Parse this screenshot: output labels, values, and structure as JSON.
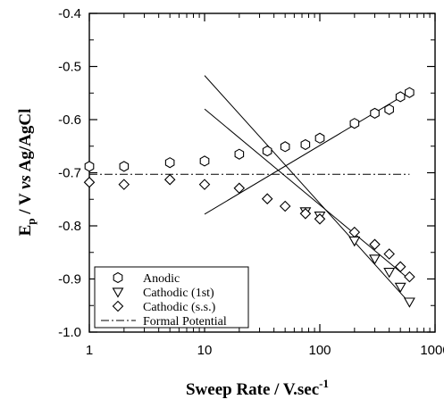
{
  "chart_data": {
    "type": "scatter",
    "xscale": "log",
    "xlim": [
      1,
      1000
    ],
    "ylim": [
      -1.0,
      -0.4
    ],
    "x_ticks": [
      1,
      10,
      100,
      1000
    ],
    "x_tick_labels": [
      "1",
      "10",
      "100",
      "1000"
    ],
    "y_ticks": [
      -1.0,
      -0.9,
      -0.8,
      -0.7,
      -0.6,
      -0.5,
      -0.4
    ],
    "y_tick_labels": [
      "-1.0",
      "-0.9",
      "-0.8",
      "-0.7",
      "-0.6",
      "-0.5",
      "-0.4"
    ],
    "xlabel": {
      "main": "Sweep Rate / V.sec",
      "sup": "-1"
    },
    "ylabel": {
      "e": "E",
      "sub": "p",
      "rest": " / V ",
      "vs": "vs",
      "end": " Ag/AgCl"
    },
    "grid": false,
    "legend_position": "bottom-left",
    "series": [
      {
        "name": "Anodic",
        "marker": "hexagon",
        "x": [
          1,
          2,
          5,
          10,
          20,
          35,
          50,
          75,
          100,
          200,
          300,
          400,
          500,
          600
        ],
        "y": [
          -0.688,
          -0.688,
          -0.681,
          -0.678,
          -0.665,
          -0.659,
          -0.651,
          -0.647,
          -0.635,
          -0.607,
          -0.588,
          -0.581,
          -0.557,
          -0.549
        ]
      },
      {
        "name": "Cathodic (1st)",
        "marker": "triangle-down",
        "x": [
          75,
          100,
          200,
          300,
          400,
          500,
          600
        ],
        "y": [
          -0.773,
          -0.781,
          -0.828,
          -0.862,
          -0.887,
          -0.915,
          -0.943
        ]
      },
      {
        "name": "Cathodic (s.s.)",
        "marker": "diamond",
        "x": [
          1,
          2,
          5,
          10,
          20,
          35,
          50,
          75,
          100,
          200,
          300,
          400,
          500,
          600
        ],
        "y": [
          -0.718,
          -0.722,
          -0.713,
          -0.722,
          -0.729,
          -0.749,
          -0.763,
          -0.777,
          -0.787,
          -0.812,
          -0.835,
          -0.853,
          -0.877,
          -0.896
        ]
      }
    ],
    "fit_lines": [
      {
        "of": "Anodic",
        "x": [
          10,
          600
        ],
        "y": [
          -0.778,
          -0.548
        ]
      },
      {
        "of": "Cathodic (1st)",
        "x": [
          10,
          600
        ],
        "y": [
          -0.517,
          -0.945
        ]
      },
      {
        "of": "Cathodic (s.s.)",
        "x": [
          10,
          600
        ],
        "y": [
          -0.58,
          -0.901
        ]
      }
    ],
    "reference_line": {
      "name": "Formal Potential",
      "style": "dash-dot",
      "y": -0.703,
      "x": [
        1,
        600
      ]
    }
  }
}
